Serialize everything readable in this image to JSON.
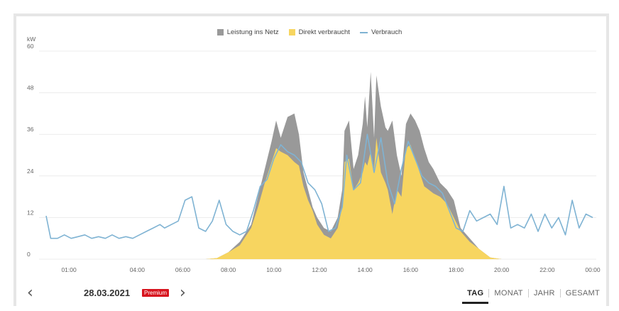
{
  "legend": {
    "items": [
      {
        "label": "Leistung ins Netz",
        "color": "#999999",
        "kind": "area"
      },
      {
        "label": "Direkt verbraucht",
        "color": "#f7d560",
        "kind": "area"
      },
      {
        "label": "Verbrauch",
        "color": "#7fb3d3",
        "kind": "line"
      }
    ]
  },
  "footer": {
    "date": "28.03.2021",
    "badge": "Premium",
    "tabs": [
      {
        "label": "TAG",
        "active": true
      },
      {
        "label": "MONAT",
        "active": false
      },
      {
        "label": "JAHR",
        "active": false
      },
      {
        "label": "GESAMT",
        "active": false
      }
    ]
  },
  "chart_data": {
    "type": "area",
    "ylabel": "kW",
    "ylim": [
      0,
      60
    ],
    "yticks": [
      0,
      12,
      24,
      36,
      48,
      60
    ],
    "xticks": [
      "01:00",
      "04:00",
      "06:00",
      "08:00",
      "10:00",
      "12:00",
      "14:00",
      "16:00",
      "18:00",
      "20:00",
      "22:00",
      "00:00"
    ],
    "xlim_hours": [
      0,
      24
    ],
    "grid": true,
    "legend_position": "top-center",
    "series": [
      {
        "name": "Leistung ins Netz",
        "kind": "area",
        "color": "#999999",
        "points": [
          [
            7,
            0
          ],
          [
            7.5,
            0.3
          ],
          [
            8,
            2
          ],
          [
            8.5,
            5
          ],
          [
            9,
            10
          ],
          [
            9.3,
            18
          ],
          [
            9.6,
            26
          ],
          [
            9.9,
            34
          ],
          [
            10.1,
            40
          ],
          [
            10.3,
            35
          ],
          [
            10.6,
            41
          ],
          [
            10.9,
            42
          ],
          [
            11.1,
            36
          ],
          [
            11.3,
            25
          ],
          [
            11.5,
            20
          ],
          [
            11.7,
            15
          ],
          [
            11.9,
            12
          ],
          [
            12.2,
            9
          ],
          [
            12.5,
            8
          ],
          [
            12.8,
            12
          ],
          [
            13.0,
            20
          ],
          [
            13.1,
            37
          ],
          [
            13.3,
            40
          ],
          [
            13.5,
            26
          ],
          [
            13.7,
            30
          ],
          [
            13.9,
            39
          ],
          [
            14.0,
            47
          ],
          [
            14.1,
            38
          ],
          [
            14.25,
            54
          ],
          [
            14.4,
            35
          ],
          [
            14.5,
            53
          ],
          [
            14.7,
            44
          ],
          [
            14.9,
            38
          ],
          [
            15.0,
            37
          ],
          [
            15.2,
            40
          ],
          [
            15.4,
            30
          ],
          [
            15.6,
            24
          ],
          [
            15.8,
            39
          ],
          [
            16.0,
            42
          ],
          [
            16.2,
            40
          ],
          [
            16.4,
            37
          ],
          [
            16.6,
            32
          ],
          [
            16.8,
            28
          ],
          [
            17.0,
            26
          ],
          [
            17.3,
            22
          ],
          [
            17.6,
            20
          ],
          [
            17.9,
            17
          ],
          [
            18.2,
            9
          ],
          [
            18.6,
            6
          ],
          [
            19,
            3
          ],
          [
            19.5,
            0.5
          ],
          [
            20,
            0
          ]
        ]
      },
      {
        "name": "Direkt verbraucht",
        "kind": "area",
        "color": "#f7d560",
        "points": [
          [
            7,
            0
          ],
          [
            7.5,
            0.3
          ],
          [
            8,
            2
          ],
          [
            8.5,
            4
          ],
          [
            9,
            9
          ],
          [
            9.3,
            15
          ],
          [
            9.6,
            22
          ],
          [
            9.9,
            28
          ],
          [
            10.1,
            32
          ],
          [
            10.3,
            31
          ],
          [
            10.6,
            30
          ],
          [
            10.9,
            28
          ],
          [
            11.1,
            27
          ],
          [
            11.3,
            21
          ],
          [
            11.5,
            17
          ],
          [
            11.7,
            14
          ],
          [
            11.9,
            10
          ],
          [
            12.2,
            7
          ],
          [
            12.5,
            6
          ],
          [
            12.8,
            9
          ],
          [
            13.0,
            15
          ],
          [
            13.1,
            28
          ],
          [
            13.3,
            29
          ],
          [
            13.5,
            20
          ],
          [
            13.7,
            22
          ],
          [
            13.9,
            25
          ],
          [
            14.0,
            28
          ],
          [
            14.1,
            27
          ],
          [
            14.25,
            31
          ],
          [
            14.4,
            26
          ],
          [
            14.5,
            35
          ],
          [
            14.7,
            25
          ],
          [
            14.9,
            22
          ],
          [
            15.0,
            20
          ],
          [
            15.2,
            13
          ],
          [
            15.4,
            20
          ],
          [
            15.6,
            18
          ],
          [
            15.8,
            32
          ],
          [
            16.0,
            33
          ],
          [
            16.2,
            29
          ],
          [
            16.4,
            25
          ],
          [
            16.6,
            21
          ],
          [
            16.8,
            20
          ],
          [
            17.0,
            19
          ],
          [
            17.3,
            18
          ],
          [
            17.6,
            16
          ],
          [
            17.9,
            12
          ],
          [
            18.2,
            8
          ],
          [
            18.6,
            5
          ],
          [
            19,
            3
          ],
          [
            19.5,
            0.5
          ],
          [
            20,
            0
          ]
        ]
      },
      {
        "name": "Verbrauch",
        "kind": "line",
        "color": "#7fb3d3",
        "points": [
          [
            0,
            12.5
          ],
          [
            0.2,
            6
          ],
          [
            0.5,
            6
          ],
          [
            0.8,
            7
          ],
          [
            1.1,
            6
          ],
          [
            1.4,
            6.5
          ],
          [
            1.7,
            7
          ],
          [
            2.0,
            6
          ],
          [
            2.3,
            6.5
          ],
          [
            2.6,
            6
          ],
          [
            2.9,
            7
          ],
          [
            3.2,
            6
          ],
          [
            3.5,
            6.5
          ],
          [
            3.8,
            6
          ],
          [
            4.1,
            7
          ],
          [
            4.4,
            8
          ],
          [
            4.7,
            9
          ],
          [
            5.0,
            10
          ],
          [
            5.2,
            9
          ],
          [
            5.5,
            10
          ],
          [
            5.8,
            11
          ],
          [
            6.1,
            17
          ],
          [
            6.4,
            18
          ],
          [
            6.7,
            9
          ],
          [
            7.0,
            8
          ],
          [
            7.3,
            11
          ],
          [
            7.6,
            17
          ],
          [
            7.9,
            10
          ],
          [
            8.2,
            8
          ],
          [
            8.5,
            7
          ],
          [
            8.8,
            8
          ],
          [
            9.1,
            14
          ],
          [
            9.4,
            21
          ],
          [
            9.7,
            23
          ],
          [
            10.0,
            29
          ],
          [
            10.3,
            33
          ],
          [
            10.6,
            31
          ],
          [
            10.9,
            30
          ],
          [
            11.2,
            28
          ],
          [
            11.5,
            22
          ],
          [
            11.8,
            20
          ],
          [
            12.1,
            16
          ],
          [
            12.4,
            8
          ],
          [
            12.7,
            9
          ],
          [
            13.0,
            15
          ],
          [
            13.2,
            30
          ],
          [
            13.5,
            20
          ],
          [
            13.8,
            22
          ],
          [
            14.1,
            36
          ],
          [
            14.4,
            25
          ],
          [
            14.7,
            35
          ],
          [
            15.0,
            22
          ],
          [
            15.3,
            16
          ],
          [
            15.6,
            26
          ],
          [
            15.9,
            34
          ],
          [
            16.2,
            29
          ],
          [
            16.5,
            24
          ],
          [
            16.8,
            22
          ],
          [
            17.1,
            21
          ],
          [
            17.4,
            19
          ],
          [
            17.7,
            14
          ],
          [
            18.0,
            9
          ],
          [
            18.3,
            8
          ],
          [
            18.6,
            14
          ],
          [
            18.9,
            11
          ],
          [
            19.2,
            12
          ],
          [
            19.5,
            13
          ],
          [
            19.8,
            10
          ],
          [
            20.1,
            21
          ],
          [
            20.4,
            9
          ],
          [
            20.7,
            10
          ],
          [
            21.0,
            9
          ],
          [
            21.3,
            13
          ],
          [
            21.6,
            8
          ],
          [
            21.9,
            13
          ],
          [
            22.2,
            9
          ],
          [
            22.5,
            12
          ],
          [
            22.8,
            7
          ],
          [
            23.1,
            17
          ],
          [
            23.4,
            9
          ],
          [
            23.7,
            13
          ],
          [
            24.0,
            12
          ]
        ]
      }
    ]
  }
}
